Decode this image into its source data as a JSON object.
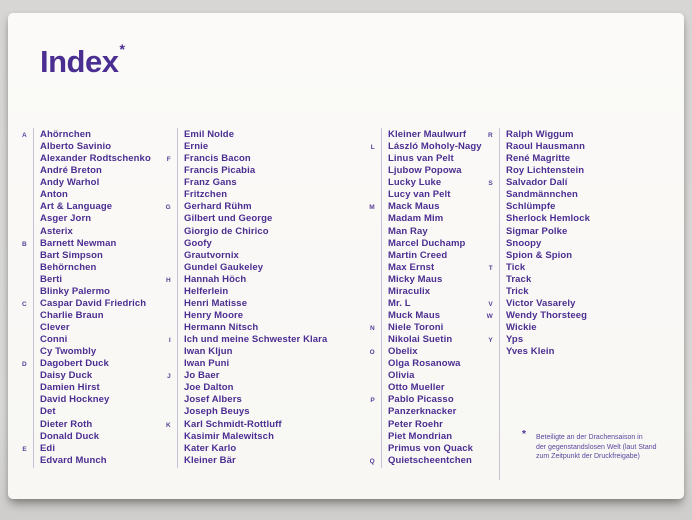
{
  "page": {
    "title": "Index",
    "title_asterisk": "*"
  },
  "colors": {
    "accent": "#4b2e91",
    "rule": "#c8c2d9",
    "card_bg": "#faf9f6",
    "desk_bg": "#d8d7d6"
  },
  "index": {
    "columns": [
      [
        {
          "letter": "A",
          "name": "Ahörnchen"
        },
        {
          "letter": "",
          "name": "Alberto Savinio"
        },
        {
          "letter": "",
          "name": "Alexander Rodtschenko"
        },
        {
          "letter": "",
          "name": "André Breton"
        },
        {
          "letter": "",
          "name": "Andy Warhol"
        },
        {
          "letter": "",
          "name": "Anton"
        },
        {
          "letter": "",
          "name": "Art & Language"
        },
        {
          "letter": "",
          "name": "Asger Jorn"
        },
        {
          "letter": "",
          "name": "Asterix"
        },
        {
          "letter": "B",
          "name": "Barnett Newman"
        },
        {
          "letter": "",
          "name": "Bart Simpson"
        },
        {
          "letter": "",
          "name": "Behörnchen"
        },
        {
          "letter": "",
          "name": "Berti"
        },
        {
          "letter": "",
          "name": "Blinky Palermo"
        },
        {
          "letter": "C",
          "name": "Caspar David Friedrich"
        },
        {
          "letter": "",
          "name": "Charlie Braun"
        },
        {
          "letter": "",
          "name": "Clever"
        },
        {
          "letter": "",
          "name": "Conni"
        },
        {
          "letter": "",
          "name": "Cy Twombly"
        },
        {
          "letter": "D",
          "name": "Dagobert Duck"
        },
        {
          "letter": "",
          "name": "Daisy Duck"
        },
        {
          "letter": "",
          "name": "Damien Hirst"
        },
        {
          "letter": "",
          "name": "David Hockney"
        },
        {
          "letter": "",
          "name": "Det"
        },
        {
          "letter": "",
          "name": "Dieter Roth"
        },
        {
          "letter": "",
          "name": "Donald Duck"
        },
        {
          "letter": "E",
          "name": "Edi"
        },
        {
          "letter": "",
          "name": "Edvard Munch"
        }
      ],
      [
        {
          "letter": "",
          "name": "Emil Nolde"
        },
        {
          "letter": "",
          "name": "Ernie"
        },
        {
          "letter": "F",
          "name": "Francis Bacon"
        },
        {
          "letter": "",
          "name": "Francis Picabia"
        },
        {
          "letter": "",
          "name": "Franz Gans"
        },
        {
          "letter": "",
          "name": "Fritzchen"
        },
        {
          "letter": "G",
          "name": "Gerhard Rühm"
        },
        {
          "letter": "",
          "name": "Gilbert und George"
        },
        {
          "letter": "",
          "name": "Giorgio de Chirico"
        },
        {
          "letter": "",
          "name": "Goofy"
        },
        {
          "letter": "",
          "name": "Grautvornix"
        },
        {
          "letter": "",
          "name": "Gundel Gaukeley"
        },
        {
          "letter": "H",
          "name": "Hannah Höch"
        },
        {
          "letter": "",
          "name": "Helferlein"
        },
        {
          "letter": "",
          "name": "Henri Matisse"
        },
        {
          "letter": "",
          "name": "Henry Moore"
        },
        {
          "letter": "",
          "name": "Hermann Nitsch"
        },
        {
          "letter": "I",
          "name": "Ich und meine Schwester Klara"
        },
        {
          "letter": "",
          "name": "Iwan Kljun"
        },
        {
          "letter": "",
          "name": "Iwan Puni"
        },
        {
          "letter": "J",
          "name": "Jo Baer"
        },
        {
          "letter": "",
          "name": "Joe Dalton"
        },
        {
          "letter": "",
          "name": "Josef Albers"
        },
        {
          "letter": "",
          "name": "Joseph Beuys"
        },
        {
          "letter": "K",
          "name": "Karl Schmidt-Rottluff"
        },
        {
          "letter": "",
          "name": "Kasimir Malewitsch"
        },
        {
          "letter": "",
          "name": "Kater Karlo"
        },
        {
          "letter": "",
          "name": "Kleiner Bär"
        }
      ],
      [
        {
          "letter": "",
          "name": "Kleiner Maulwurf"
        },
        {
          "letter": "L",
          "name": "László Moholy-Nagy"
        },
        {
          "letter": "",
          "name": "Linus van Pelt"
        },
        {
          "letter": "",
          "name": "Ljubow Popowa"
        },
        {
          "letter": "",
          "name": "Lucky Luke"
        },
        {
          "letter": "",
          "name": "Lucy van Pelt"
        },
        {
          "letter": "M",
          "name": "Mack Maus"
        },
        {
          "letter": "",
          "name": "Madam Mim"
        },
        {
          "letter": "",
          "name": "Man Ray"
        },
        {
          "letter": "",
          "name": "Marcel Duchamp"
        },
        {
          "letter": "",
          "name": "Martin Creed"
        },
        {
          "letter": "",
          "name": "Max Ernst"
        },
        {
          "letter": "",
          "name": "Micky Maus"
        },
        {
          "letter": "",
          "name": "Miraculix"
        },
        {
          "letter": "",
          "name": "Mr. L"
        },
        {
          "letter": "",
          "name": "Muck Maus"
        },
        {
          "letter": "N",
          "name": "Niele Toroni"
        },
        {
          "letter": "",
          "name": "Nikolai Suetin"
        },
        {
          "letter": "O",
          "name": "Obelix"
        },
        {
          "letter": "",
          "name": "Olga Rosanowa"
        },
        {
          "letter": "",
          "name": "Olivia"
        },
        {
          "letter": "",
          "name": "Otto Mueller"
        },
        {
          "letter": "P",
          "name": "Pablo Picasso"
        },
        {
          "letter": "",
          "name": "Panzerknacker"
        },
        {
          "letter": "",
          "name": "Peter Roehr"
        },
        {
          "letter": "",
          "name": "Piet Mondrian"
        },
        {
          "letter": "",
          "name": "Primus von Quack"
        },
        {
          "letter": "Q",
          "name": "Quietscheentchen"
        }
      ],
      [
        {
          "letter": "R",
          "name": "Ralph Wiggum"
        },
        {
          "letter": "",
          "name": "Raoul Hausmann"
        },
        {
          "letter": "",
          "name": "René Magritte"
        },
        {
          "letter": "",
          "name": "Roy Lichtenstein"
        },
        {
          "letter": "S",
          "name": "Salvador Dalí"
        },
        {
          "letter": "",
          "name": "Sandmännchen"
        },
        {
          "letter": "",
          "name": "Schlümpfe"
        },
        {
          "letter": "",
          "name": "Sherlock Hemlock"
        },
        {
          "letter": "",
          "name": "Sigmar Polke"
        },
        {
          "letter": "",
          "name": "Snoopy"
        },
        {
          "letter": "",
          "name": "Spion & Spion"
        },
        {
          "letter": "T",
          "name": "Tick"
        },
        {
          "letter": "",
          "name": "Track"
        },
        {
          "letter": "",
          "name": "Trick"
        },
        {
          "letter": "V",
          "name": "Victor Vasarely"
        },
        {
          "letter": "W",
          "name": "Wendy Thorsteeg"
        },
        {
          "letter": "",
          "name": "Wickie"
        },
        {
          "letter": "Y",
          "name": "Yps"
        },
        {
          "letter": "",
          "name": "Yves Klein"
        }
      ]
    ]
  },
  "footnote": {
    "marker": "*",
    "lines": [
      "Beteiligte an der Drachensaison in",
      "der gegenstandslosen Welt (laut Stand",
      "zum Zeitpunkt der Druckfreigabe)"
    ]
  }
}
